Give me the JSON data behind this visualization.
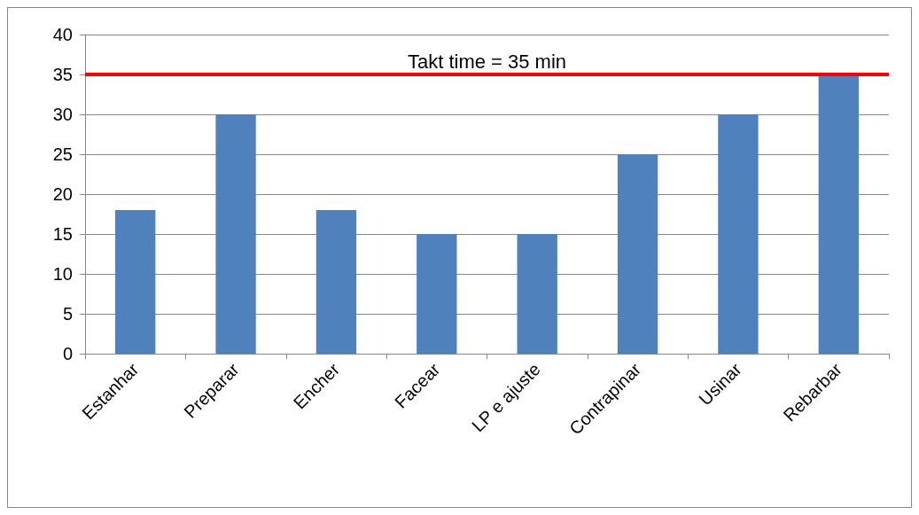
{
  "chart_data": {
    "type": "bar",
    "categories": [
      "Estanhar",
      "Preparar",
      "Encher",
      "Facear",
      "LP e ajuste",
      "Contrapinar",
      "Usinar",
      "Rebarbar"
    ],
    "values": [
      18,
      30,
      18,
      15,
      15,
      25,
      30,
      35
    ],
    "color": "#4f81bd",
    "ylim": [
      0,
      40
    ],
    "yticks": [
      0,
      5,
      10,
      15,
      20,
      25,
      30,
      35,
      40
    ],
    "grid": "y",
    "ref_lines": [
      {
        "axis": "y",
        "value": 35,
        "label": "Takt time = 35 min",
        "color": "#ff0000",
        "line_style": "solid"
      }
    ]
  }
}
